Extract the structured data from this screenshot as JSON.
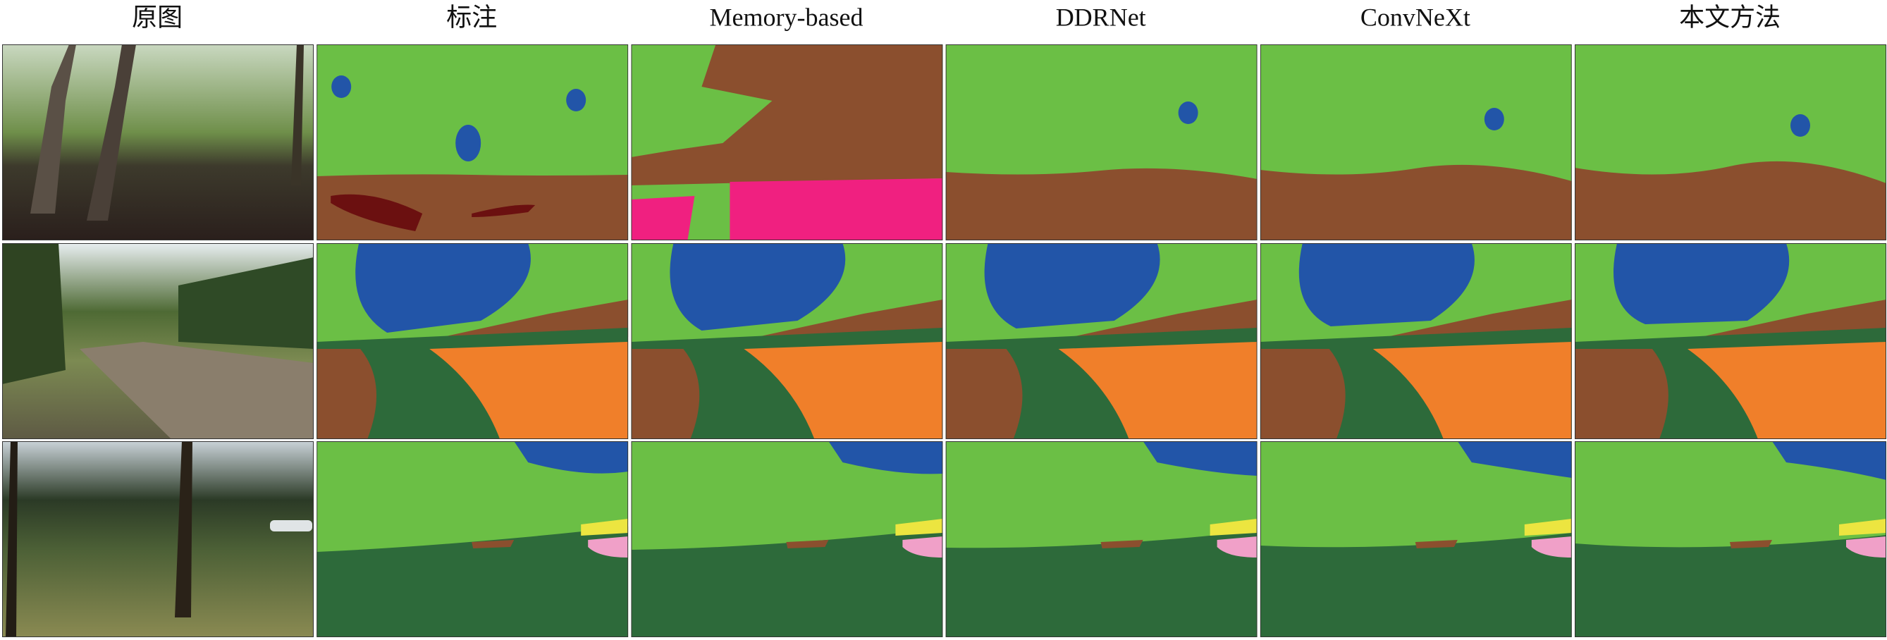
{
  "columns": [
    "原图",
    "标注",
    "Memory-based",
    "DDRNet",
    "ConvNeXt",
    "本文方法"
  ]
}
